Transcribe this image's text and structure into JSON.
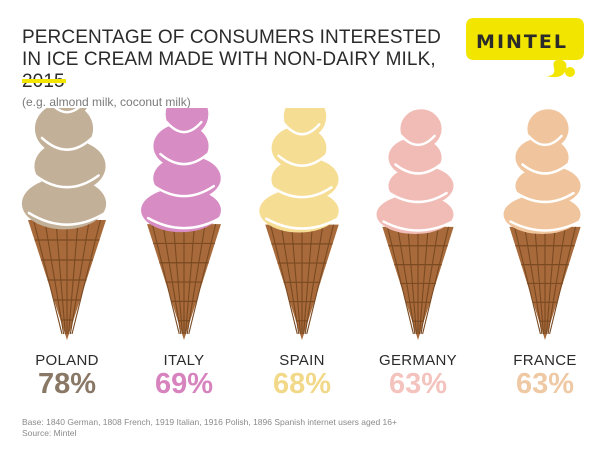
{
  "title": "PERCENTAGE OF CONSUMERS INTERESTED IN ICE CREAM MADE WITH NON-DAIRY MILK, 2015",
  "subtitle": "(e.g.  almond milk, coconut milk)",
  "logo": "MINTEL",
  "footnote": {
    "base": "Base: 1840 German, 1808 French, 1919 Italian, 1916 Polish, 1896 Spanish internet users aged 16+",
    "source": "Source: Mintel"
  },
  "colors": {
    "accent_yellow": "#f2e600",
    "cone": "#a86a3a",
    "cone_dark": "#7a4a22"
  },
  "chart_data": {
    "type": "bar",
    "title": "PERCENTAGE OF CONSUMERS INTERESTED IN ICE CREAM MADE WITH NON-DAIRY MILK, 2015",
    "categories": [
      "POLAND",
      "ITALY",
      "SPAIN",
      "GERMANY",
      "FRANCE"
    ],
    "values": [
      78,
      69,
      68,
      63,
      63
    ],
    "labels": [
      "78%",
      "69%",
      "68%",
      "63%",
      "63%"
    ],
    "colors": [
      "#c3b098",
      "#d88cc4",
      "#f6dd94",
      "#f2bcb6",
      "#f0c59d"
    ],
    "text_colors": [
      "#8a7866",
      "#d783be",
      "#f2d989",
      "#f4c3be",
      "#efc8a4"
    ],
    "ylim": [
      0,
      100
    ]
  }
}
